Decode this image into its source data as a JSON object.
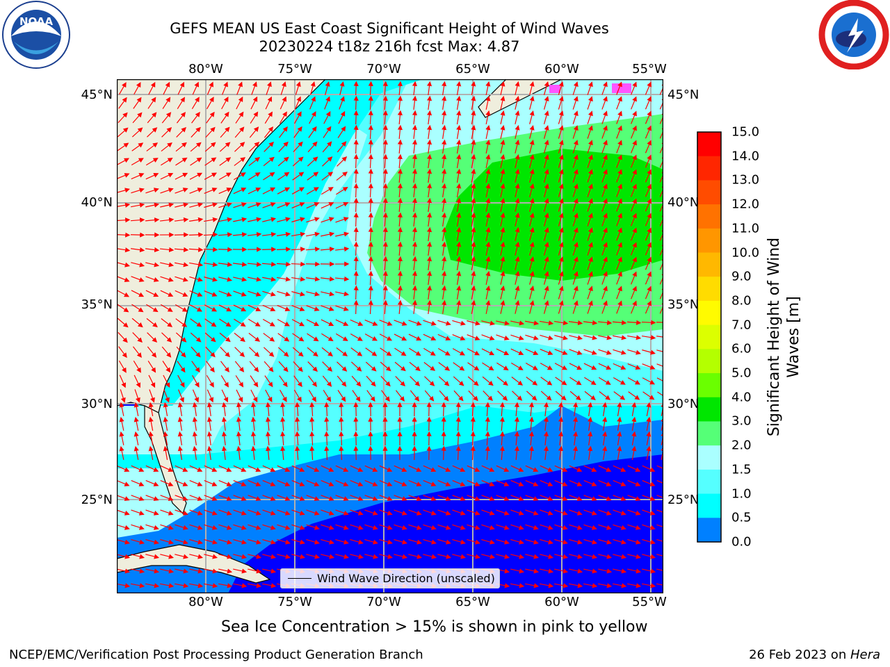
{
  "title_line1": "GEFS MEAN US East Coast Significant Height of Wind Waves",
  "title_line2": "20230224 t18z 216h fcst   Max: 4.87",
  "lon_labels": [
    "80°W",
    "75°W",
    "70°W",
    "65°W",
    "60°W",
    "55°W"
  ],
  "lat_labels": [
    "45°N",
    "40°N",
    "35°N",
    "30°N",
    "25°N"
  ],
  "colorbar": {
    "label": "Significant Height of Wind Waves [m]",
    "ticks": [
      "15.0",
      "14.0",
      "13.0",
      "12.0",
      "11.0",
      "10.0",
      "9.0",
      "8.0",
      "7.0",
      "6.0",
      "5.0",
      "4.0",
      "3.0",
      "2.0",
      "1.5",
      "1.0",
      "0.5",
      "0.0"
    ],
    "colors": [
      "#ff0000",
      "#ff2600",
      "#ff4c00",
      "#ff7200",
      "#ff9600",
      "#ffb800",
      "#ffdc00",
      "#fffb00",
      "#dcff00",
      "#b4ff00",
      "#6aff00",
      "#00e600",
      "#55ff77",
      "#aaffff",
      "#55ffff",
      "#00ffff",
      "#0080ff",
      "#0000ff"
    ]
  },
  "legend": {
    "label": "Wind Wave Direction (unscaled)"
  },
  "caption": "Sea Ice Concentration > 15% is shown in pink to yellow",
  "footer_left": "NCEP/EMC/Verification Post Processing Product Generation Branch",
  "footer_right_date": "26 Feb 2023 on ",
  "footer_right_machine": "Hera",
  "logos": {
    "left": "NOAA",
    "right": "NATIONAL WEATHER SERVICE"
  },
  "map_extent": {
    "lon": [
      -85,
      -54.4
    ],
    "lat": [
      20.5,
      46
    ]
  },
  "colors": {
    "land": "#efeedd",
    "arrow": "#ff0000",
    "grid": "#b0b0b0"
  }
}
